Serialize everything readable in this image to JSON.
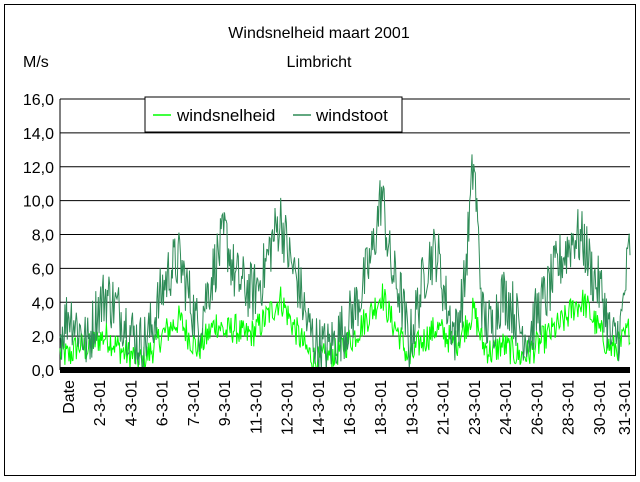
{
  "chart_data": {
    "type": "line",
    "title": "Windsnelheid maart 2001",
    "subtitle": "Limbricht",
    "ylabel": "M/s",
    "ylim": [
      0,
      16
    ],
    "yticks": [
      "16,0",
      "14,0",
      "12,0",
      "10,0",
      "8,0",
      "6,0",
      "4,0",
      "2,0",
      "0,0"
    ],
    "ytick_values": [
      16,
      14,
      12,
      10,
      8,
      6,
      4,
      2,
      0
    ],
    "xlim": [
      1,
      32
    ],
    "xtick_labels": [
      "Date",
      "2-3-01",
      "4-3-01",
      "6-3-01",
      "7-3-01",
      "9-3-01",
      "11-3-01",
      "12-3-01",
      "14-3-01",
      "16-3-01",
      "18-3-01",
      "19-3-01",
      "21-3-01",
      "23-3-01",
      "24-3-01",
      "26-3-01",
      "28-3-01",
      "30-3-01",
      "31-3-01"
    ],
    "grid": "horizontal",
    "legend_position": "top-left",
    "x": [
      1.0,
      1.5,
      2.0,
      2.5,
      3.0,
      3.5,
      4.0,
      4.5,
      5.0,
      5.5,
      6.0,
      6.5,
      7.0,
      7.5,
      8.0,
      8.5,
      9.0,
      9.5,
      10.0,
      10.5,
      11.0,
      11.5,
      12.0,
      12.5,
      13.0,
      13.5,
      14.0,
      14.5,
      15.0,
      15.5,
      16.0,
      16.5,
      17.0,
      17.5,
      18.0,
      18.5,
      19.0,
      19.5,
      20.0,
      20.5,
      21.0,
      21.5,
      22.0,
      22.5,
      23.0,
      23.5,
      24.0,
      24.5,
      25.0,
      25.5,
      26.0,
      26.5,
      27.0,
      27.5,
      28.0,
      28.5,
      29.0,
      29.5,
      30.0,
      30.5,
      31.0,
      31.5,
      32.0
    ],
    "series": [
      {
        "name": "windsnelheid",
        "color": "#00ff00",
        "values": [
          1.0,
          0.8,
          1.5,
          1.2,
          1.8,
          2.0,
          1.5,
          1.0,
          0.8,
          0.5,
          1.2,
          2.0,
          2.5,
          3.0,
          2.0,
          1.2,
          2.0,
          2.8,
          2.2,
          2.5,
          2.0,
          2.2,
          2.8,
          3.5,
          4.2,
          3.0,
          2.0,
          1.0,
          0.5,
          0.8,
          1.0,
          1.5,
          2.0,
          2.8,
          3.5,
          4.5,
          3.0,
          2.0,
          0.5,
          1.5,
          2.0,
          2.5,
          2.0,
          1.5,
          2.5,
          3.5,
          1.5,
          1.0,
          1.5,
          1.2,
          0.8,
          1.0,
          1.5,
          2.0,
          2.5,
          3.0,
          3.8,
          4.0,
          3.0,
          2.0,
          1.2,
          1.5,
          2.5
        ]
      },
      {
        "name": "windstoot",
        "color": "#2e8b57",
        "values": [
          2.0,
          3.5,
          2.5,
          1.5,
          3.5,
          4.5,
          3.8,
          3.0,
          2.0,
          1.5,
          2.5,
          4.5,
          6.0,
          6.5,
          4.5,
          2.5,
          4.5,
          6.5,
          8.0,
          5.5,
          5.0,
          4.5,
          5.5,
          7.5,
          9.0,
          6.5,
          5.0,
          2.5,
          1.5,
          1.2,
          1.8,
          2.5,
          3.5,
          5.0,
          7.0,
          10.5,
          6.0,
          4.5,
          1.5,
          4.0,
          6.5,
          7.0,
          4.0,
          2.0,
          5.0,
          12.5,
          3.0,
          2.5,
          4.5,
          4.0,
          2.5,
          2.0,
          3.5,
          4.5,
          6.0,
          7.0,
          8.0,
          7.5,
          5.5,
          4.5,
          1.5,
          2.5,
          7.5
        ]
      }
    ]
  }
}
